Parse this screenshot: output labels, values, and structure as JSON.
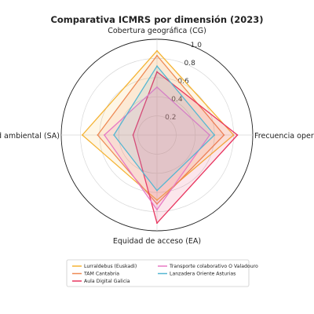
{
  "chart_data": {
    "type": "radar",
    "title": "Comparativa ICMRS por dimensión (2023)",
    "axes": [
      "Cobertura geográfica (CG)",
      "Frecuencia operativa (FO)",
      "Equidad de acceso (EA)",
      "Sostenibilidad ambiental (SA)"
    ],
    "rlim": [
      0,
      1.0
    ],
    "rticks": [
      "0.2",
      "0.4",
      "0.6",
      "0.8",
      "1.0"
    ],
    "rtick_values": [
      0.2,
      0.4,
      0.6,
      0.8,
      1.0
    ],
    "grid": true,
    "legend_position": "bottom",
    "series": [
      {
        "name": "Lurraldebus (Euskadi)",
        "color": "#f5b333",
        "values": [
          0.88,
          0.8,
          0.68,
          0.78
        ]
      },
      {
        "name": "TAM Cantabria",
        "color": "#ee8a55",
        "values": [
          0.83,
          0.7,
          0.72,
          0.62
        ]
      },
      {
        "name": "Aula Digital Galicia",
        "color": "#e8355f",
        "values": [
          0.66,
          0.84,
          0.92,
          0.25
        ]
      },
      {
        "name": "Transporte colaborativo O Valadouro",
        "color": "#e879c4",
        "values": [
          0.5,
          0.55,
          0.78,
          0.55
        ]
      },
      {
        "name": "Lanzadera Oriente Asturias",
        "color": "#55b7d2",
        "values": [
          0.72,
          0.6,
          0.58,
          0.45
        ]
      }
    ]
  }
}
